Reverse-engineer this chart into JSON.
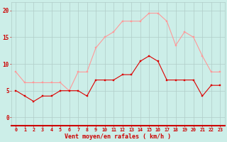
{
  "hours": [
    0,
    1,
    2,
    3,
    4,
    5,
    6,
    7,
    8,
    9,
    10,
    11,
    12,
    13,
    14,
    15,
    16,
    17,
    18,
    19,
    20,
    21,
    22,
    23
  ],
  "wind_avg": [
    5,
    4,
    3,
    4,
    4,
    5,
    5,
    5,
    4,
    7,
    7,
    7,
    8,
    8,
    10.5,
    11.5,
    10.5,
    7,
    7,
    7,
    7,
    4,
    6,
    6
  ],
  "wind_gust": [
    8.5,
    6.5,
    6.5,
    6.5,
    6.5,
    6.5,
    5,
    8.5,
    8.5,
    13,
    15,
    16,
    18,
    18,
    18,
    19.5,
    19.5,
    18,
    13.5,
    16,
    15,
    11.5,
    8.5,
    8.5
  ],
  "color_avg": "#dd0000",
  "color_gust": "#ff9999",
  "bg_color": "#cceee8",
  "grid_color": "#b0ccc8",
  "xlabel": "Vent moyen/en rafales ( km/h )",
  "xlabel_color": "#cc0000",
  "tick_color": "#cc0000",
  "axis_color": "#cc0000",
  "ylim": [
    -1.5,
    21.5
  ],
  "yticks": [
    0,
    5,
    10,
    15,
    20
  ],
  "arrow_row": "↘↘↘↘→→→↖↖↖↑↗↖↑↗↖→→→→→→→→"
}
